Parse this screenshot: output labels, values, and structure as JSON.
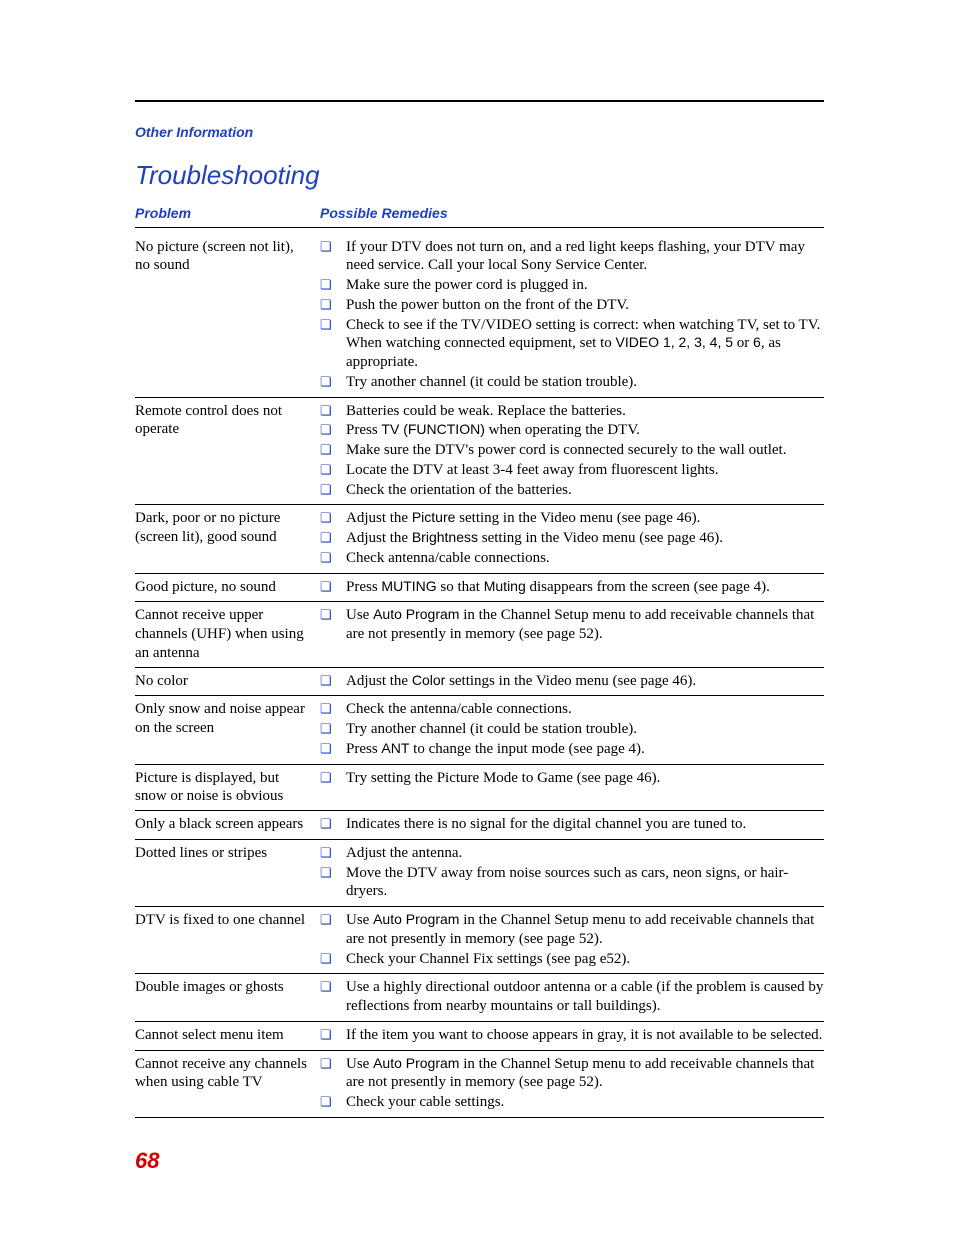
{
  "section_label": "Other Information",
  "page_title": "Troubleshooting",
  "table_headers": {
    "problem": "Problem",
    "remedies": "Possible Remedies"
  },
  "page_number": "68",
  "colors": {
    "accent_blue": "#2040c0",
    "page_number_red": "#d00000",
    "text_black": "#000000",
    "background": "#ffffff"
  },
  "bullet_glyph": "❏",
  "rows": [
    {
      "problem": "No picture (screen not lit), no sound",
      "remedies": [
        {
          "plain": "If your DTV does not turn on, and a red light keeps flashing, your DTV may need service. Call your local Sony Service Center."
        },
        {
          "plain": "Make sure the power cord is plugged in."
        },
        {
          "plain": "Push the power button on the front of the DTV."
        },
        {
          "pre": "Check to see if the TV/VIDEO setting is correct: when watching TV, set to TV. When watching connected equipment, set to ",
          "ui": "VIDEO 1, 2, 3, 4, 5",
          "mid": " or ",
          "ui2": "6",
          "post": ", as appropriate."
        },
        {
          "plain": "Try another channel (it could be station trouble)."
        }
      ]
    },
    {
      "problem": "Remote control does not operate",
      "remedies": [
        {
          "plain": "Batteries could be weak. Replace the batteries."
        },
        {
          "pre": "Press ",
          "ui": "TV (FUNCTION)",
          "post": " when operating the DTV."
        },
        {
          "plain": "Make sure the DTV's power cord is connected securely to the wall outlet."
        },
        {
          "plain": "Locate the DTV at least 3-4 feet away from fluorescent lights."
        },
        {
          "plain": "Check the orientation of the batteries."
        }
      ]
    },
    {
      "problem": "Dark, poor or no picture (screen lit), good sound",
      "remedies": [
        {
          "pre": "Adjust the ",
          "ui": "Picture",
          "post": " setting in the Video menu (see page 46)."
        },
        {
          "pre": "Adjust the ",
          "ui": "Brightness",
          "post": " setting in the Video menu (see page 46)."
        },
        {
          "plain": "Check antenna/cable connections."
        }
      ]
    },
    {
      "problem": "Good picture, no sound",
      "remedies": [
        {
          "pre": "Press ",
          "ui": "MUTING",
          "mid": " so that ",
          "ui2": "Muting",
          "post": " disappears from the screen (see page 4)."
        }
      ]
    },
    {
      "problem": "Cannot receive upper channels (UHF) when using an antenna",
      "remedies": [
        {
          "pre": "Use ",
          "ui": "Auto Program",
          "post": " in the Channel Setup menu to add receivable channels that are not presently in memory (see page 52)."
        }
      ]
    },
    {
      "problem": "No color",
      "remedies": [
        {
          "pre": "Adjust the ",
          "ui": "Color",
          "post": " settings in the Video menu (see page 46)."
        }
      ]
    },
    {
      "problem": "Only snow and noise appear on the screen",
      "remedies": [
        {
          "plain": "Check the antenna/cable connections."
        },
        {
          "plain": "Try another channel (it could be station trouble)."
        },
        {
          "pre": "Press ",
          "ui": "ANT",
          "post": " to change the input mode (see page 4)."
        }
      ]
    },
    {
      "problem": "Picture is displayed, but snow or noise is obvious",
      "remedies": [
        {
          "plain": "Try setting the Picture Mode to Game (see page 46)."
        }
      ]
    },
    {
      "problem": "Only a black screen appears",
      "remedies": [
        {
          "plain": "Indicates there is no signal for the digital channel you are tuned to."
        }
      ]
    },
    {
      "problem": "Dotted lines or stripes",
      "remedies": [
        {
          "plain": "Adjust the antenna."
        },
        {
          "plain": "Move the DTV away from noise sources such as cars, neon signs, or hair-dryers."
        }
      ]
    },
    {
      "problem": "DTV is fixed to one channel",
      "remedies": [
        {
          "pre": "Use ",
          "ui": "Auto Program",
          "post": " in the Channel Setup menu to add receivable channels that are not presently in memory (see page 52)."
        },
        {
          "plain": "Check your Channel Fix settings (see pag e52)."
        }
      ]
    },
    {
      "problem": "Double images or ghosts",
      "remedies": [
        {
          "plain": "Use a highly directional outdoor antenna or a cable (if the problem is caused by reflections from nearby mountains or tall buildings)."
        }
      ]
    },
    {
      "problem": "Cannot select menu item",
      "remedies": [
        {
          "plain": "If the item you want to choose appears in gray, it is not available to be selected."
        }
      ]
    },
    {
      "problem": "Cannot receive any channels when using cable TV",
      "remedies": [
        {
          "pre": "Use ",
          "ui": "Auto Program",
          "post": " in the Channel Setup menu to add receivable channels that are not presently in memory (see page 52)."
        },
        {
          "plain": "Check your cable settings."
        }
      ]
    }
  ]
}
